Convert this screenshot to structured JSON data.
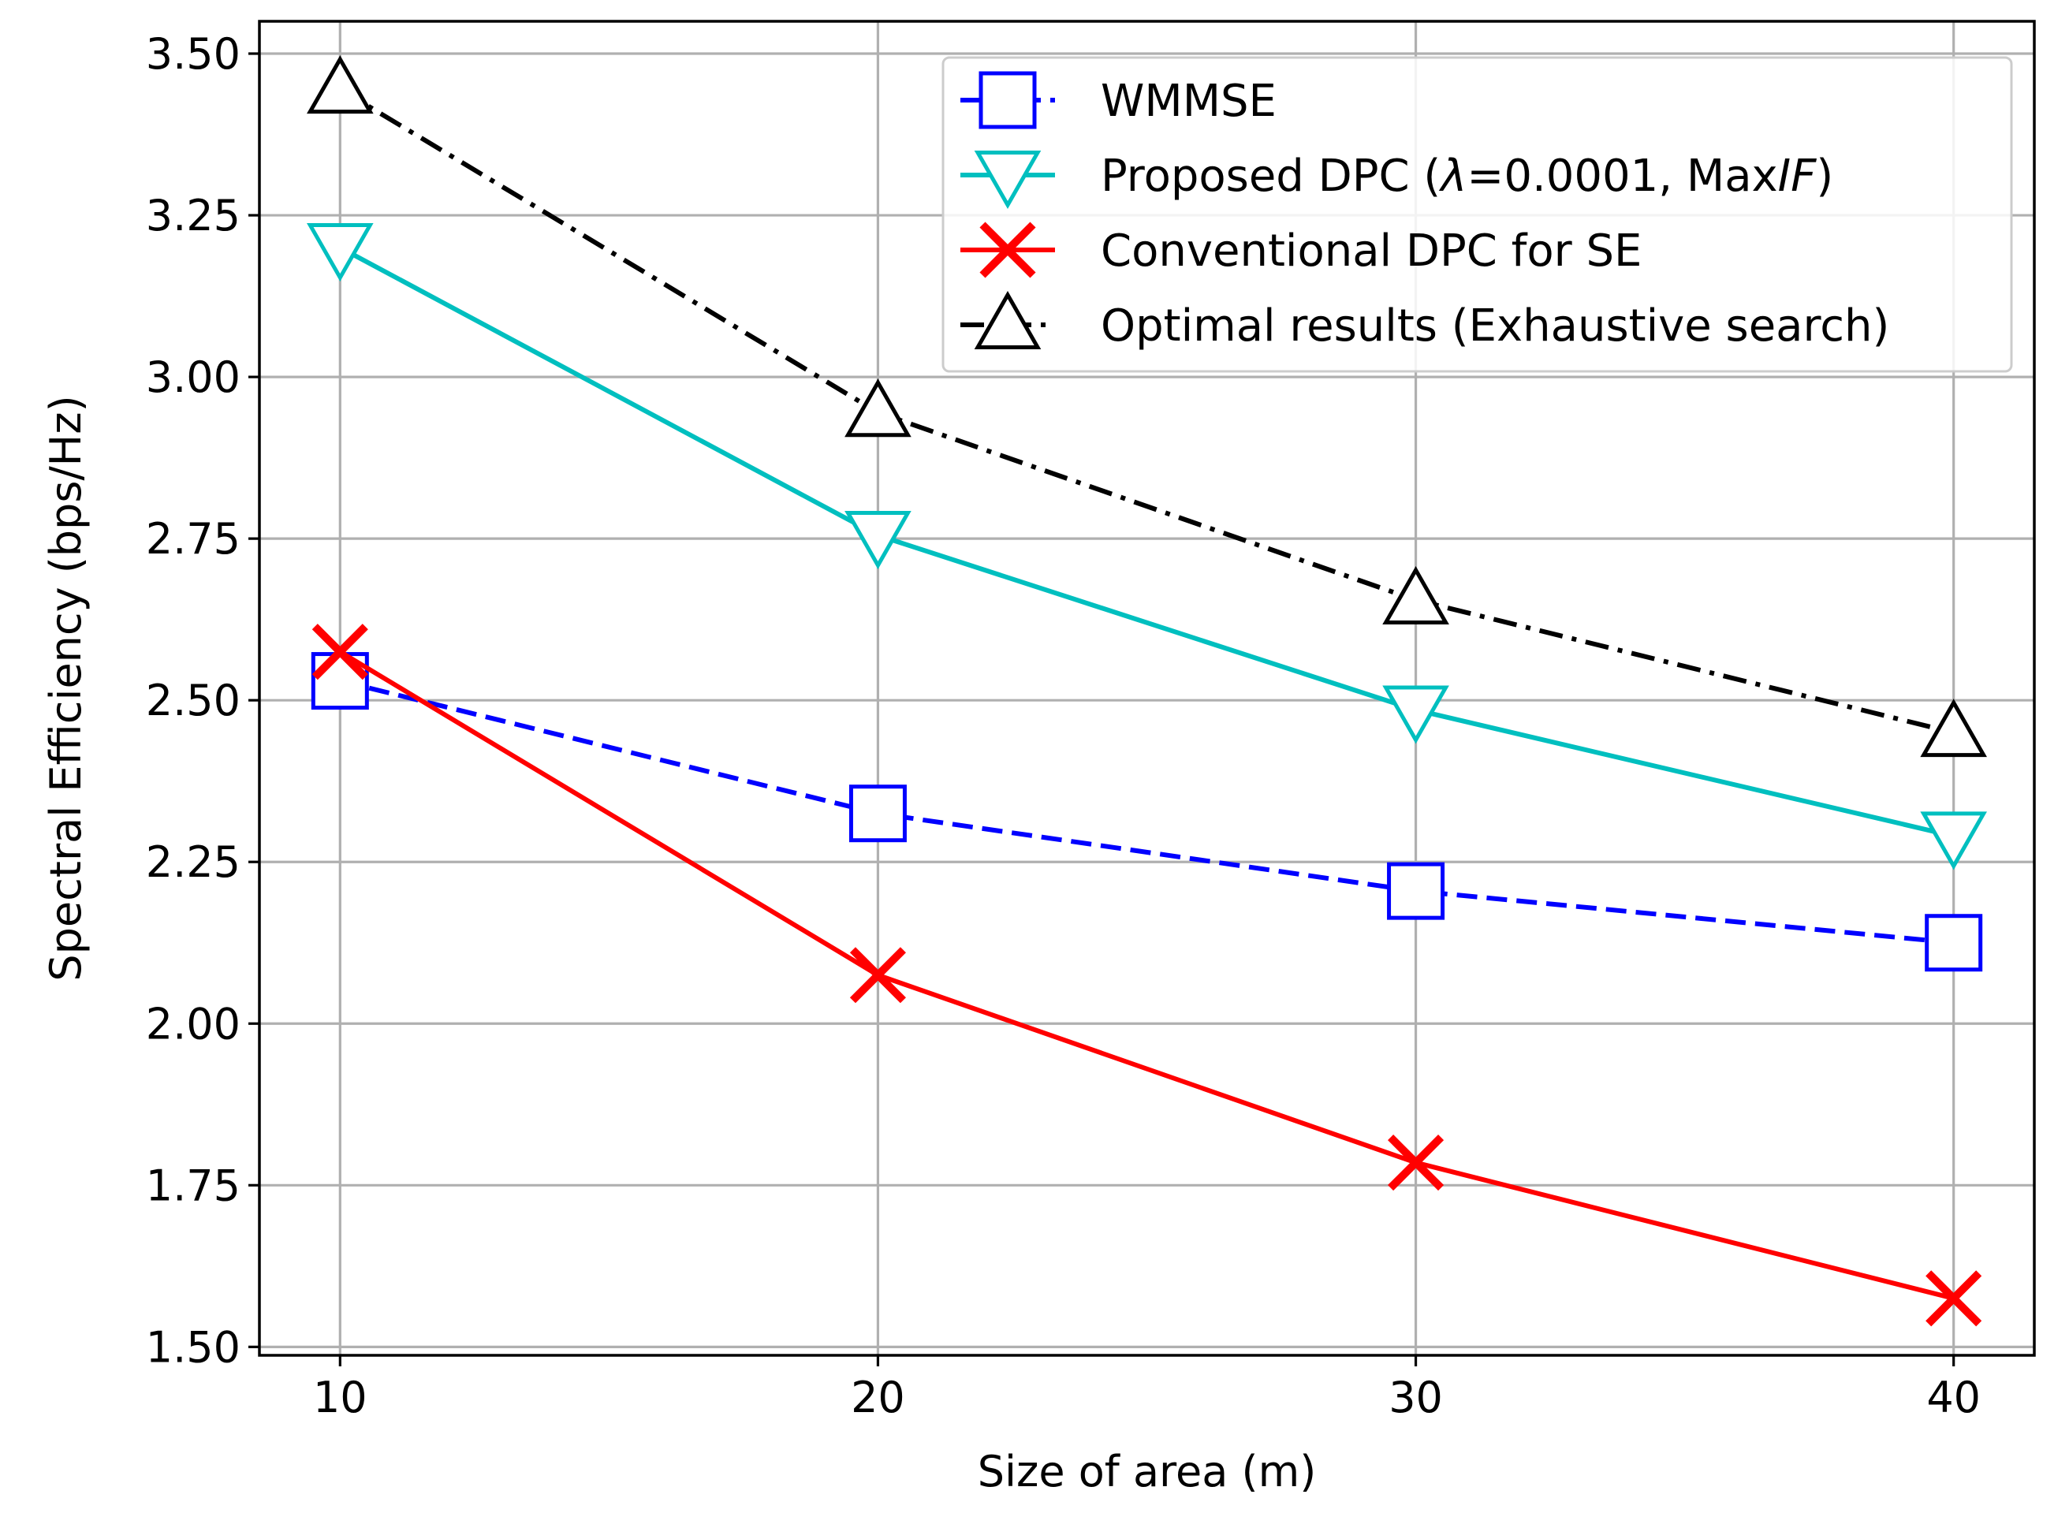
{
  "chart_data": {
    "type": "line",
    "title": "",
    "xlabel": "Size of area (m)",
    "ylabel": "Spectral Efficiency (bps/Hz)",
    "x": [
      10,
      20,
      30,
      40
    ],
    "xticks": [
      10,
      20,
      30,
      40
    ],
    "xtick_labels": [
      "10",
      "20",
      "30",
      "40"
    ],
    "yticks": [
      1.5,
      1.75,
      2.0,
      2.25,
      2.5,
      2.75,
      3.0,
      3.25,
      3.5
    ],
    "ytick_labels": [
      "1.50",
      "1.75",
      "2.00",
      "2.25",
      "2.50",
      "2.75",
      "3.00",
      "3.25",
      "3.50"
    ],
    "xlim": [
      8.5,
      41.5
    ],
    "ylim": [
      1.487,
      3.55
    ],
    "grid": true,
    "legend_position": "top-right",
    "series": [
      {
        "name": "WMMSE",
        "legend_parts": [
          [
            "WMMSE",
            "normal"
          ]
        ],
        "values": [
          2.53,
          2.325,
          2.205,
          2.125
        ],
        "color": "#0000ff",
        "line_style": "dashed",
        "marker": "square"
      },
      {
        "name": "Proposed DPC (λ=0.0001, MaxIF)",
        "legend_parts": [
          [
            "Proposed DPC (",
            "normal"
          ],
          [
            "λ",
            "italic"
          ],
          [
            "=0.0001, Max",
            "normal"
          ],
          [
            "IF",
            "italic"
          ],
          [
            ")",
            "normal"
          ]
        ],
        "values": [
          3.2,
          2.755,
          2.485,
          2.29
        ],
        "color": "#00bfbf",
        "line_style": "solid",
        "marker": "triangle-down"
      },
      {
        "name": "Conventional DPC for SE",
        "legend_parts": [
          [
            "Conventional DPC for SE",
            "normal"
          ]
        ],
        "values": [
          2.575,
          2.075,
          1.785,
          1.575
        ],
        "color": "#ff0000",
        "line_style": "solid",
        "marker": "x"
      },
      {
        "name": "Optimal results (Exhaustive search)",
        "legend_parts": [
          [
            "Optimal results (Exhaustive search)",
            "normal"
          ]
        ],
        "values": [
          3.445,
          2.945,
          2.655,
          2.45
        ],
        "color": "#000000",
        "line_style": "dashdot",
        "marker": "triangle-up"
      }
    ]
  }
}
